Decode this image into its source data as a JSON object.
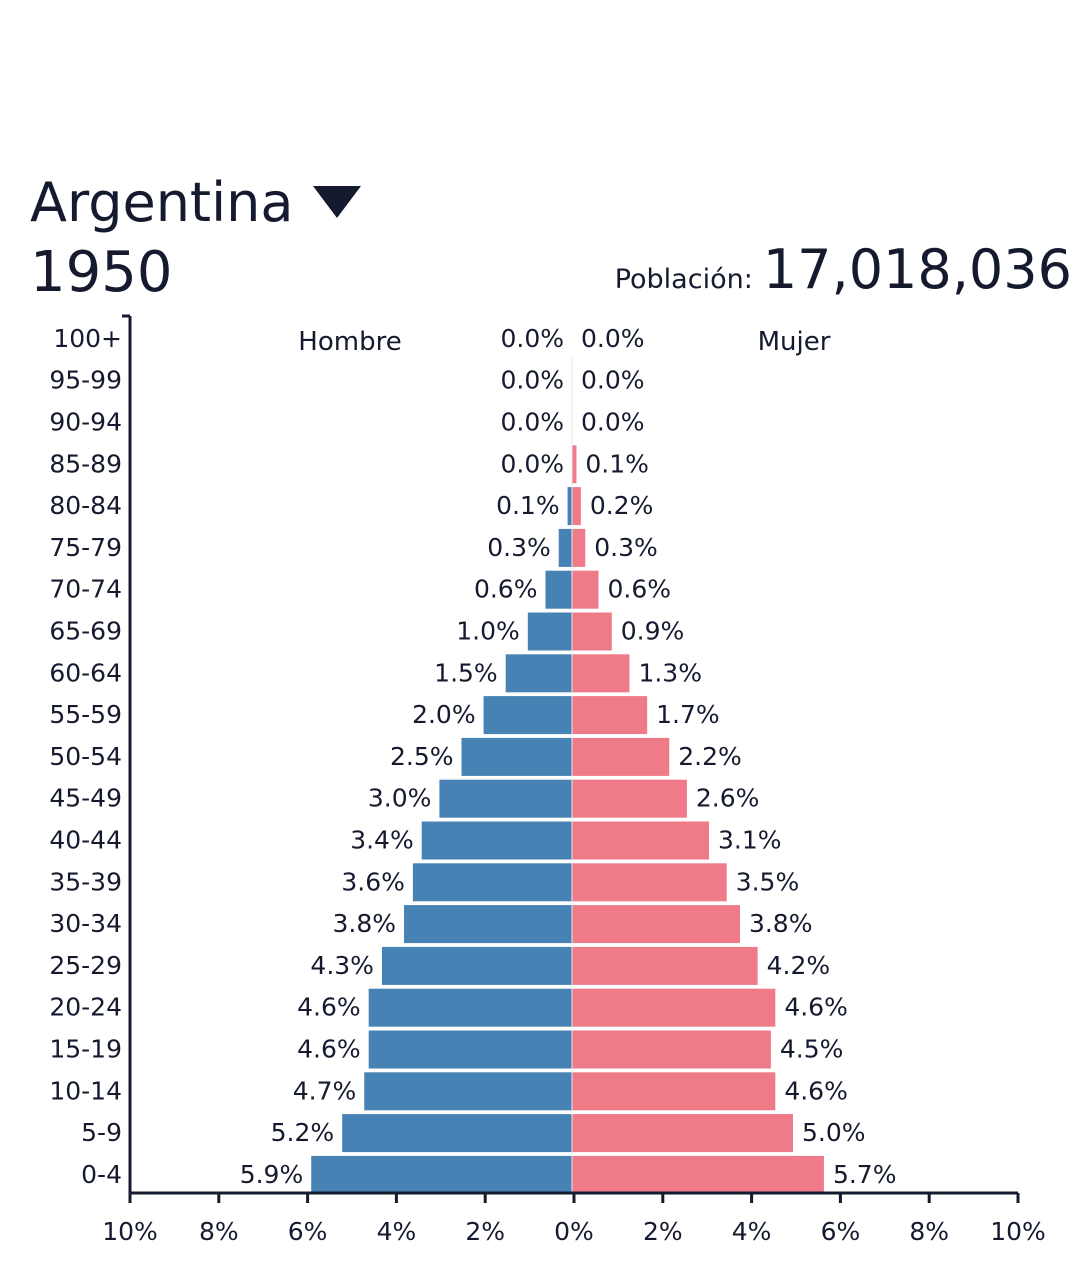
{
  "header": {
    "country": "Argentina",
    "year": "1950",
    "population_label": "Población:",
    "population_value": "17,018,036",
    "dropdown_icon": "triangle-down-icon"
  },
  "colors": {
    "male": "#4682b4",
    "female": "#ef7a88",
    "text": "#151a2e",
    "axis": "#151a2e"
  },
  "chart_data": {
    "type": "bar",
    "orientation": "horizontal",
    "layout": "population-pyramid",
    "categories": [
      "100+",
      "95-99",
      "90-94",
      "85-89",
      "80-84",
      "75-79",
      "70-74",
      "65-69",
      "60-64",
      "55-59",
      "50-54",
      "45-49",
      "40-44",
      "35-39",
      "30-34",
      "25-29",
      "20-24",
      "15-19",
      "10-14",
      "5-9",
      "0-4"
    ],
    "series": [
      {
        "name": "Hombre",
        "values": [
          0.0,
          0.0,
          0.0,
          0.0,
          0.1,
          0.3,
          0.6,
          1.0,
          1.5,
          2.0,
          2.5,
          3.0,
          3.4,
          3.6,
          3.8,
          4.3,
          4.6,
          4.6,
          4.7,
          5.2,
          5.9
        ],
        "labels": [
          "0.0%",
          "0.0%",
          "0.0%",
          "0.0%",
          "0.1%",
          "0.3%",
          "0.6%",
          "1.0%",
          "1.5%",
          "2.0%",
          "2.5%",
          "3.0%",
          "3.4%",
          "3.6%",
          "3.8%",
          "4.3%",
          "4.6%",
          "4.6%",
          "4.7%",
          "5.2%",
          "5.9%"
        ]
      },
      {
        "name": "Mujer",
        "values": [
          0.0,
          0.0,
          0.0,
          0.1,
          0.2,
          0.3,
          0.6,
          0.9,
          1.3,
          1.7,
          2.2,
          2.6,
          3.1,
          3.5,
          3.8,
          4.2,
          4.6,
          4.5,
          4.6,
          5.0,
          5.7
        ],
        "labels": [
          "0.0%",
          "0.0%",
          "0.0%",
          "0.1%",
          "0.2%",
          "0.3%",
          "0.6%",
          "0.9%",
          "1.3%",
          "1.7%",
          "2.2%",
          "2.6%",
          "3.1%",
          "3.5%",
          "3.8%",
          "4.2%",
          "4.6%",
          "4.5%",
          "4.6%",
          "5.0%",
          "5.7%"
        ]
      }
    ],
    "xlim": [
      -10,
      10
    ],
    "x_ticks": [
      "10%",
      "8%",
      "6%",
      "4%",
      "2%",
      "0%",
      "2%",
      "4%",
      "6%",
      "8%",
      "10%"
    ],
    "grid": false,
    "legend": "top (Hombre left, Mujer right)"
  }
}
